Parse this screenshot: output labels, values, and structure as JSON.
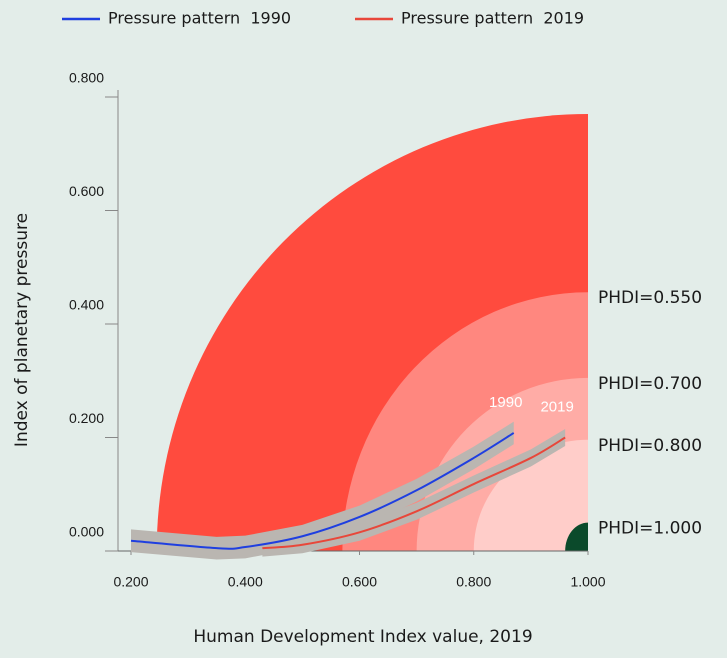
{
  "chart_data": {
    "type": "line",
    "xlabel": "Human Development Index value, 2019",
    "ylabel": "Index of planetary pressure",
    "xlim": [
      0.2,
      1.0
    ],
    "xticks": [
      {
        "value": 0.2,
        "label": "0.200"
      },
      {
        "value": 0.4,
        "label": "0.400"
      },
      {
        "value": 0.6,
        "label": "0.600"
      },
      {
        "value": 0.8,
        "label": "0.800"
      },
      {
        "value": 1.0,
        "label": "1.000"
      }
    ],
    "ylim": [
      0,
      0.8
    ],
    "yticks": [
      {
        "value": 0,
        "label": "0.000"
      },
      {
        "value": 0.2,
        "label": "0.200"
      },
      {
        "value": 0.4,
        "label": "0.400"
      },
      {
        "value": 0.6,
        "label": "0.600"
      },
      {
        "value": 0.8,
        "label": "0.800"
      }
    ],
    "envelope": {
      "x0": 0.245,
      "y1": 0.77,
      "color": "#ff4b3e"
    },
    "bands": [
      {
        "label": "PHDI=0.550",
        "x0": 0.57,
        "y1": 0.456,
        "color": "#ff877f"
      },
      {
        "label": "PHDI=0.700",
        "x0": 0.7,
        "y1": 0.305,
        "color": "#ffaca6"
      },
      {
        "label": "PHDI=0.800",
        "x0": 0.8,
        "y1": 0.196,
        "color": "#ffcdc9"
      },
      {
        "label": "PHDI=1.000",
        "x0": 0.96,
        "y1": 0.05,
        "color": "#0b4a2b"
      }
    ],
    "ribbon_color": "#bab6b1",
    "series": [
      {
        "name": "Pressure pattern  1990",
        "color": "#1f3fe0",
        "annotation": "1990",
        "ci": 0.02,
        "x": [
          0.2,
          0.35,
          0.4,
          0.5,
          0.6,
          0.7,
          0.8,
          0.87
        ],
        "values": [
          0.018,
          0.005,
          0.007,
          0.026,
          0.06,
          0.107,
          0.164,
          0.208
        ]
      },
      {
        "name": "Pressure pattern  2019",
        "color": "#e8473a",
        "annotation": "2019",
        "ci": 0.015,
        "x": [
          0.43,
          0.5,
          0.6,
          0.7,
          0.8,
          0.9,
          0.96
        ],
        "values": [
          0.005,
          0.011,
          0.033,
          0.07,
          0.118,
          0.164,
          0.2
        ]
      }
    ]
  }
}
